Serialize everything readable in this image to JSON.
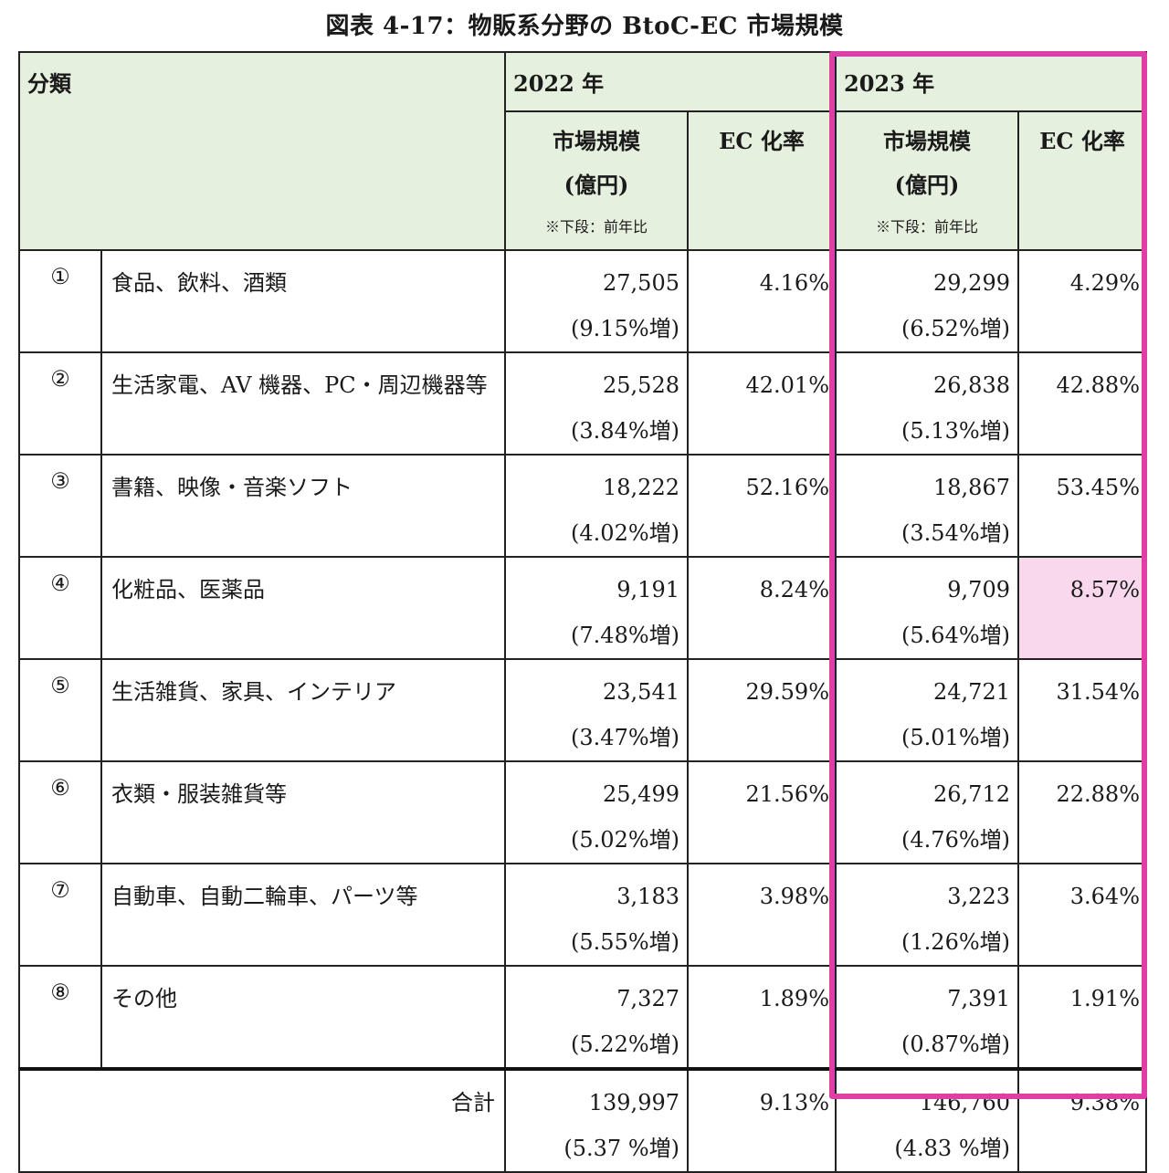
{
  "title": "図表 4-17：物販系分野の BtoC-EC 市場規模",
  "header": {
    "category": "分類",
    "year_2022": "2022 年",
    "year_2023": "2023 年",
    "market_size": "市場規模",
    "unit": "(億円)",
    "note": "※下段：前年比",
    "ec_rate": "EC 化率"
  },
  "rows": [
    {
      "num": "①",
      "name": "食品、飲料、酒類",
      "size2022": "27,505",
      "growth2022": "(9.15%増)",
      "rate2022": "4.16%",
      "size2023": "29,299",
      "growth2023": "(6.52%増)",
      "rate2023": "4.29%"
    },
    {
      "num": "②",
      "name": "生活家電、AV 機器、PC・周辺機器等",
      "size2022": "25,528",
      "growth2022": "(3.84%増)",
      "rate2022": "42.01%",
      "size2023": "26,838",
      "growth2023": "(5.13%増)",
      "rate2023": "42.88%"
    },
    {
      "num": "③",
      "name": "書籍、映像・音楽ソフト",
      "size2022": "18,222",
      "growth2022": "(4.02%増)",
      "rate2022": "52.16%",
      "size2023": "18,867",
      "growth2023": "(3.54%増)",
      "rate2023": "53.45%"
    },
    {
      "num": "④",
      "name": "化粧品、医薬品",
      "size2022": "9,191",
      "growth2022": "(7.48%増)",
      "rate2022": "8.24%",
      "size2023": "9,709",
      "growth2023": "(5.64%増)",
      "rate2023": "8.57%"
    },
    {
      "num": "⑤",
      "name": "生活雑貨、家具、インテリア",
      "size2022": "23,541",
      "growth2022": "(3.47%増)",
      "rate2022": "29.59%",
      "size2023": "24,721",
      "growth2023": "(5.01%増)",
      "rate2023": "31.54%"
    },
    {
      "num": "⑥",
      "name": "衣類・服装雑貨等",
      "size2022": "25,499",
      "growth2022": "(5.02%増)",
      "rate2022": "21.56%",
      "size2023": "26,712",
      "growth2023": "(4.76%増)",
      "rate2023": "22.88%"
    },
    {
      "num": "⑦",
      "name": "自動車、自動二輪車、パーツ等",
      "size2022": "3,183",
      "growth2022": "(5.55%増)",
      "rate2022": "3.98%",
      "size2023": "3,223",
      "growth2023": "(1.26%増)",
      "rate2023": "3.64%"
    },
    {
      "num": "⑧",
      "name": "その他",
      "size2022": "7,327",
      "growth2022": "(5.22%増)",
      "rate2022": "1.89%",
      "size2023": "7,391",
      "growth2023": "(0.87%増)",
      "rate2023": "1.91%"
    }
  ],
  "total": {
    "label": "合計",
    "size2022": "139,997",
    "growth2022": "(5.37 %増)",
    "rate2022": "9.13%",
    "size2023": "146,760",
    "growth2023": "(4.83 %増)",
    "rate2023": "9.38%"
  },
  "colors": {
    "header_bg": "#e6f0de",
    "highlight_border": "#de3fa6",
    "highlight_cell": "#f9d8ee"
  }
}
